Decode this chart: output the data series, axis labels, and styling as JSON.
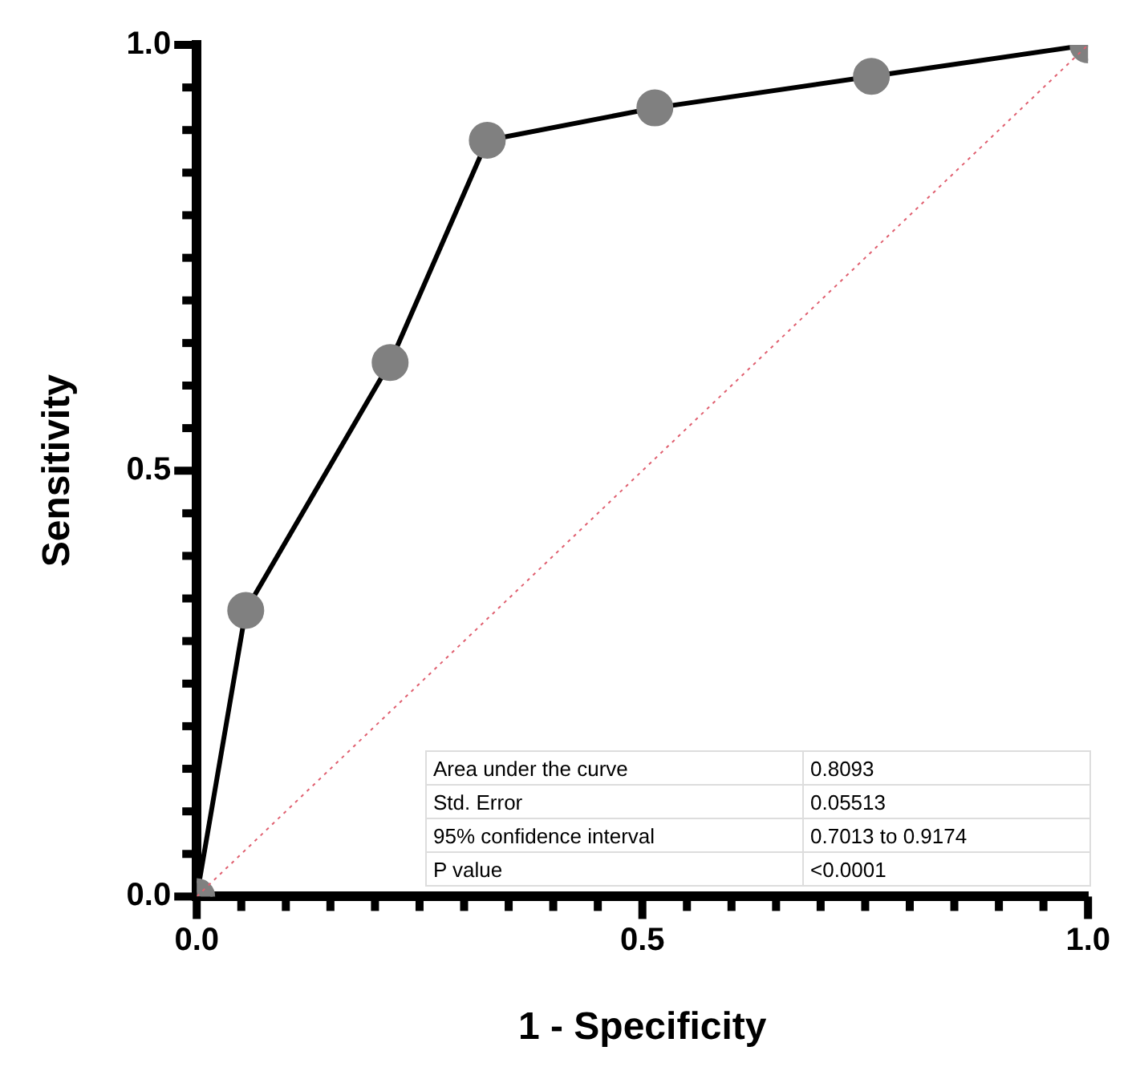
{
  "chart_data": {
    "type": "line",
    "xlabel": "1 - Specificity",
    "ylabel": "Sensitivity",
    "xlim": [
      0,
      1
    ],
    "ylim": [
      0,
      1
    ],
    "xticks": [
      {
        "value": 0,
        "label": "0.0"
      },
      {
        "value": 0.05,
        "label": null
      },
      {
        "value": 0.1,
        "label": null
      },
      {
        "value": 0.15,
        "label": null
      },
      {
        "value": 0.2,
        "label": null
      },
      {
        "value": 0.25,
        "label": null
      },
      {
        "value": 0.3,
        "label": null
      },
      {
        "value": 0.35,
        "label": null
      },
      {
        "value": 0.4,
        "label": null
      },
      {
        "value": 0.45,
        "label": null
      },
      {
        "value": 0.5,
        "label": "0.5"
      },
      {
        "value": 0.55,
        "label": null
      },
      {
        "value": 0.6,
        "label": null
      },
      {
        "value": 0.65,
        "label": null
      },
      {
        "value": 0.7,
        "label": null
      },
      {
        "value": 0.75,
        "label": null
      },
      {
        "value": 0.8,
        "label": null
      },
      {
        "value": 0.85,
        "label": null
      },
      {
        "value": 0.9,
        "label": null
      },
      {
        "value": 0.95,
        "label": null
      },
      {
        "value": 1,
        "label": "1.0"
      }
    ],
    "yticks": [
      {
        "value": 0,
        "label": "0.0"
      },
      {
        "value": 0.05,
        "label": null
      },
      {
        "value": 0.1,
        "label": null
      },
      {
        "value": 0.15,
        "label": null
      },
      {
        "value": 0.2,
        "label": null
      },
      {
        "value": 0.25,
        "label": null
      },
      {
        "value": 0.3,
        "label": null
      },
      {
        "value": 0.35,
        "label": null
      },
      {
        "value": 0.4,
        "label": null
      },
      {
        "value": 0.45,
        "label": null
      },
      {
        "value": 0.5,
        "label": "0.5"
      },
      {
        "value": 0.55,
        "label": null
      },
      {
        "value": 0.6,
        "label": null
      },
      {
        "value": 0.65,
        "label": null
      },
      {
        "value": 0.7,
        "label": null
      },
      {
        "value": 0.75,
        "label": null
      },
      {
        "value": 0.8,
        "label": null
      },
      {
        "value": 0.85,
        "label": null
      },
      {
        "value": 0.9,
        "label": null
      },
      {
        "value": 0.95,
        "label": null
      },
      {
        "value": 1,
        "label": "1.0"
      }
    ],
    "series": [
      {
        "color": "#e06070",
        "line_style": "dotted",
        "marker": "none",
        "x": [
          0,
          1
        ],
        "values": [
          0,
          1
        ]
      },
      {
        "color": "#000000",
        "colors": [
          "#808080",
          "#808080",
          "#808080",
          "#808080",
          "#808080",
          "#808080",
          "#808080"
        ],
        "marker": "circle",
        "line_style": "solid",
        "x": [
          0,
          0.055,
          0.217,
          0.326,
          0.514,
          0.757,
          1
        ],
        "values": [
          0,
          0.336,
          0.627,
          0.888,
          0.926,
          0.963,
          1
        ]
      }
    ],
    "annotations": [
      "Area under the curve",
      "0.8093",
      "Std. Error",
      "0.05513",
      "95% confidence interval",
      "0.7013 to 0.9174",
      "P value",
      "<0.0001"
    ]
  }
}
